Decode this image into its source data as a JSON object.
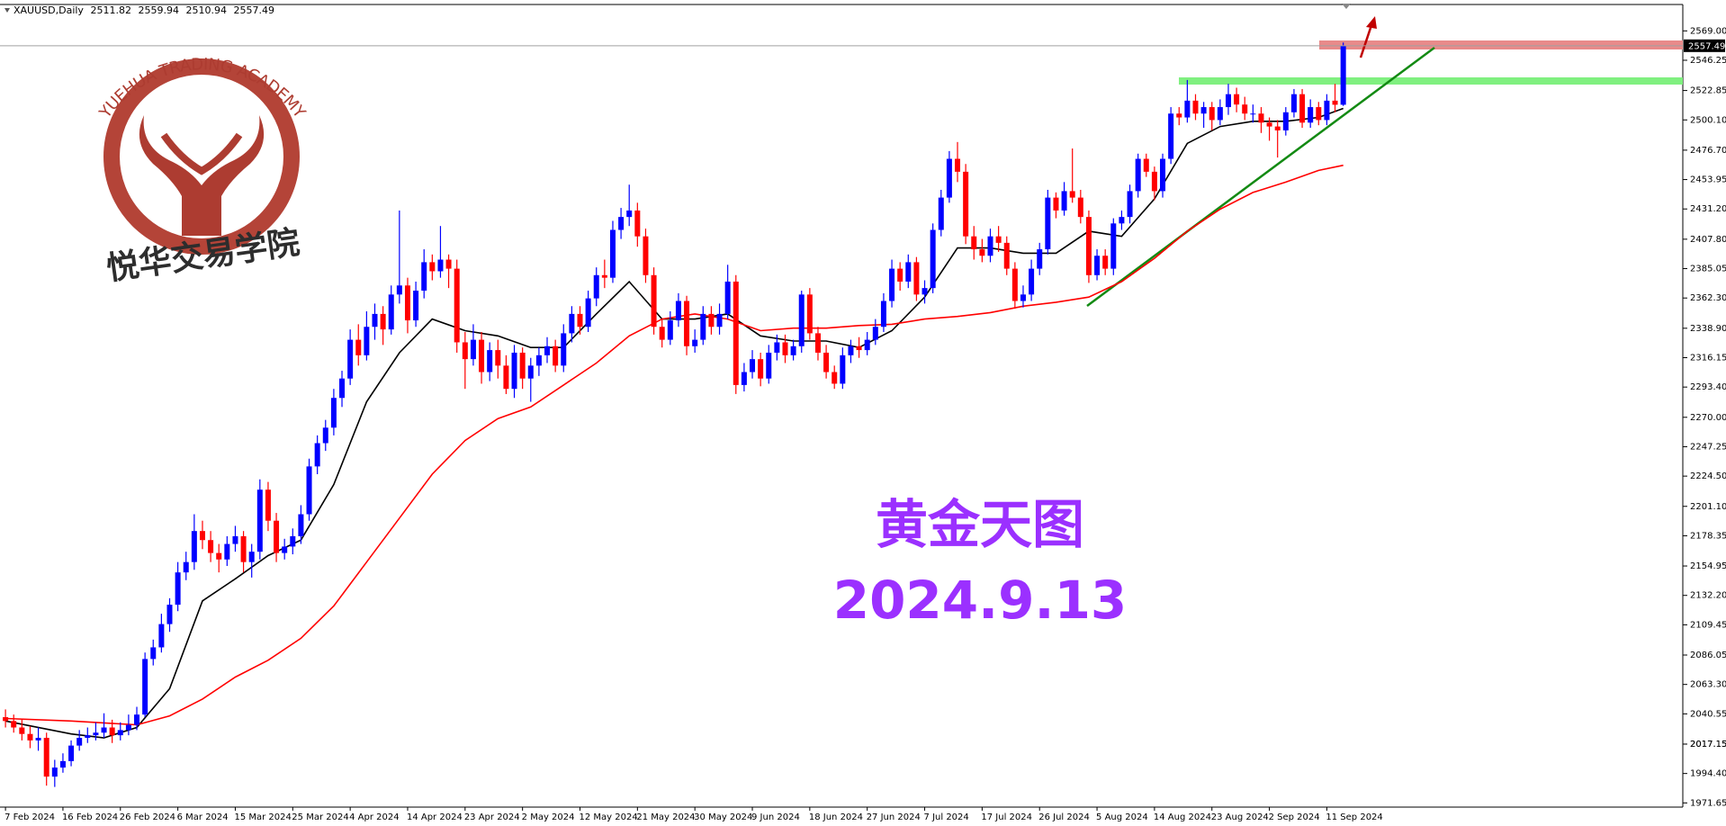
{
  "chart_data": {
    "type": "candlestick",
    "symbol": "XAUUSD,Daily",
    "up_color": "#0000ff",
    "down_color": "#ff0000",
    "ylim": [
      1968.4,
      2589.4
    ],
    "yticks": [
      {
        "value": 2569,
        "label": "2569.00"
      },
      2546.25,
      2522.85,
      {
        "value": 2500.1,
        "label": "2500.10"
      },
      {
        "value": 2476.7,
        "label": "2476.70"
      },
      2453.95,
      {
        "value": 2431.2,
        "label": "2431.20"
      },
      {
        "value": 2407.8,
        "label": "2407.80"
      },
      2385.05,
      {
        "value": 2362.3,
        "label": "2362.30"
      },
      {
        "value": 2338.9,
        "label": "2338.90"
      },
      2316.15,
      {
        "value": 2293.4,
        "label": "2293.40"
      },
      {
        "value": 2270,
        "label": "2270.00"
      },
      2247.25,
      {
        "value": 2224.5,
        "label": "2224.50"
      },
      {
        "value": 2201.1,
        "label": "2201.10"
      },
      2178.35,
      2154.95,
      {
        "value": 2132.2,
        "label": "2132.20"
      },
      2109.45,
      2086.05,
      {
        "value": 2063.3,
        "label": "2063.30"
      },
      2040.55,
      2017.15,
      {
        "value": 1994.4,
        "label": "1994.40"
      },
      2017.15,
      1971.65
    ],
    "categories": [
      "7 Feb 2024",
      null,
      null,
      null,
      null,
      null,
      null,
      "16 Feb 2024",
      null,
      null,
      null,
      null,
      null,
      null,
      "26 Feb 2024",
      null,
      null,
      null,
      null,
      null,
      null,
      "6 Mar 2024",
      null,
      null,
      null,
      null,
      null,
      null,
      "15 Mar 2024",
      null,
      null,
      null,
      null,
      null,
      null,
      "25 Mar 2024",
      null,
      null,
      null,
      null,
      null,
      null,
      "4 Apr 2024",
      null,
      null,
      null,
      null,
      null,
      null,
      "14 Apr 2024",
      null,
      null,
      null,
      null,
      null,
      null,
      "23 Apr 2024",
      null,
      null,
      null,
      null,
      null,
      null,
      "2 May 2024",
      null,
      null,
      null,
      null,
      null,
      null,
      "12 May 2024",
      null,
      null,
      null,
      null,
      null,
      null,
      "21 May 2024",
      null,
      null,
      null,
      null,
      null,
      null,
      "30 May 2024",
      null,
      null,
      null,
      null,
      null,
      null,
      "9 Jun 2024",
      null,
      null,
      null,
      null,
      null,
      null,
      "18 Jun 2024",
      null,
      null,
      null,
      null,
      null,
      null,
      "27 Jun 2024",
      null,
      null,
      null,
      null,
      null,
      null,
      "7 Jul 2024",
      null,
      null,
      null,
      null,
      null,
      null,
      "17 Jul 2024",
      null,
      null,
      null,
      null,
      null,
      null,
      "26 Jul 2024",
      null,
      null,
      null,
      null,
      null,
      null,
      "5 Aug 2024",
      null,
      null,
      null,
      null,
      null,
      null,
      "14 Aug 2024",
      null,
      null,
      null,
      null,
      null,
      null,
      "23 Aug 2024",
      null,
      null,
      null,
      null,
      null,
      null,
      "2 Sep 2024",
      null,
      null,
      null,
      null,
      null,
      null,
      "11 Sep 2024",
      null,
      null
    ],
    "ohlc": [
      [
        2038,
        2044,
        2030,
        2035
      ],
      [
        2035,
        2040,
        2026,
        2030
      ],
      [
        2030,
        2036,
        2020,
        2025
      ],
      [
        2025,
        2031,
        2014,
        2020
      ],
      [
        2020,
        2030,
        2012,
        2022
      ],
      [
        2022,
        2026,
        1985,
        1992
      ],
      [
        1992,
        2005,
        1984,
        1999
      ],
      [
        1999,
        2010,
        1995,
        2004
      ],
      [
        2004,
        2020,
        2000,
        2016
      ],
      [
        2016,
        2028,
        2012,
        2022
      ],
      [
        2022,
        2030,
        2018,
        2024
      ],
      [
        2024,
        2034,
        2020,
        2026
      ],
      [
        2026,
        2041,
        2022,
        2030
      ],
      [
        2030,
        2036,
        2018,
        2024
      ],
      [
        2024,
        2034,
        2020,
        2028
      ],
      [
        2028,
        2040,
        2024,
        2032
      ],
      [
        2032,
        2046,
        2028,
        2040
      ],
      [
        2040,
        2088,
        2038,
        2083
      ],
      [
        2083,
        2098,
        2078,
        2092
      ],
      [
        2092,
        2118,
        2088,
        2110
      ],
      [
        2110,
        2130,
        2104,
        2125
      ],
      [
        2125,
        2158,
        2120,
        2150
      ],
      [
        2150,
        2166,
        2144,
        2158
      ],
      [
        2158,
        2195,
        2152,
        2182
      ],
      [
        2182,
        2190,
        2168,
        2175
      ],
      [
        2175,
        2182,
        2158,
        2165
      ],
      [
        2165,
        2172,
        2150,
        2160
      ],
      [
        2160,
        2178,
        2155,
        2172
      ],
      [
        2172,
        2186,
        2166,
        2178
      ],
      [
        2178,
        2182,
        2150,
        2158
      ],
      [
        2158,
        2172,
        2146,
        2166
      ],
      [
        2166,
        2222,
        2160,
        2214
      ],
      [
        2214,
        2220,
        2182,
        2190
      ],
      [
        2190,
        2196,
        2158,
        2165
      ],
      [
        2165,
        2176,
        2160,
        2170
      ],
      [
        2170,
        2184,
        2164,
        2178
      ],
      [
        2178,
        2202,
        2172,
        2195
      ],
      [
        2195,
        2238,
        2190,
        2232
      ],
      [
        2232,
        2256,
        2226,
        2250
      ],
      [
        2250,
        2268,
        2244,
        2262
      ],
      [
        2262,
        2292,
        2256,
        2285
      ],
      [
        2285,
        2306,
        2278,
        2300
      ],
      [
        2300,
        2338,
        2295,
        2330
      ],
      [
        2330,
        2342,
        2310,
        2318
      ],
      [
        2318,
        2352,
        2314,
        2340
      ],
      [
        2340,
        2358,
        2330,
        2350
      ],
      [
        2350,
        2356,
        2326,
        2338
      ],
      [
        2338,
        2372,
        2334,
        2365
      ],
      [
        2365,
        2430,
        2358,
        2372
      ],
      [
        2372,
        2378,
        2335,
        2345
      ],
      [
        2345,
        2375,
        2340,
        2368
      ],
      [
        2368,
        2400,
        2362,
        2390
      ],
      [
        2390,
        2396,
        2376,
        2383
      ],
      [
        2383,
        2418,
        2378,
        2392
      ],
      [
        2392,
        2396,
        2370,
        2385
      ],
      [
        2385,
        2392,
        2320,
        2328
      ],
      [
        2328,
        2336,
        2292,
        2315
      ],
      [
        2315,
        2342,
        2310,
        2330
      ],
      [
        2330,
        2336,
        2296,
        2305
      ],
      [
        2305,
        2328,
        2298,
        2322
      ],
      [
        2322,
        2330,
        2300,
        2310
      ],
      [
        2310,
        2318,
        2288,
        2292
      ],
      [
        2292,
        2326,
        2285,
        2320
      ],
      [
        2320,
        2324,
        2292,
        2300
      ],
      [
        2300,
        2316,
        2282,
        2310
      ],
      [
        2310,
        2324,
        2302,
        2318
      ],
      [
        2318,
        2332,
        2312,
        2325
      ],
      [
        2325,
        2330,
        2305,
        2310
      ],
      [
        2310,
        2342,
        2305,
        2335
      ],
      [
        2335,
        2356,
        2328,
        2350
      ],
      [
        2350,
        2356,
        2334,
        2340
      ],
      [
        2340,
        2368,
        2336,
        2362
      ],
      [
        2362,
        2386,
        2356,
        2380
      ],
      [
        2380,
        2392,
        2370,
        2378
      ],
      [
        2378,
        2422,
        2374,
        2415
      ],
      [
        2415,
        2432,
        2408,
        2425
      ],
      [
        2425,
        2450,
        2418,
        2430
      ],
      [
        2430,
        2436,
        2402,
        2410
      ],
      [
        2410,
        2416,
        2374,
        2380
      ],
      [
        2380,
        2386,
        2334,
        2340
      ],
      [
        2340,
        2346,
        2324,
        2330
      ],
      [
        2330,
        2352,
        2326,
        2345
      ],
      [
        2345,
        2366,
        2340,
        2360
      ],
      [
        2360,
        2364,
        2318,
        2325
      ],
      [
        2325,
        2338,
        2320,
        2330
      ],
      [
        2330,
        2356,
        2326,
        2350
      ],
      [
        2350,
        2356,
        2334,
        2340
      ],
      [
        2340,
        2358,
        2334,
        2350
      ],
      [
        2350,
        2388,
        2346,
        2375
      ],
      [
        2375,
        2380,
        2288,
        2295
      ],
      [
        2295,
        2312,
        2290,
        2305
      ],
      [
        2305,
        2322,
        2300,
        2315
      ],
      [
        2315,
        2320,
        2294,
        2300
      ],
      [
        2300,
        2326,
        2296,
        2320
      ],
      [
        2320,
        2334,
        2314,
        2328
      ],
      [
        2328,
        2334,
        2312,
        2318
      ],
      [
        2318,
        2330,
        2314,
        2325
      ],
      [
        2325,
        2368,
        2320,
        2365
      ],
      [
        2365,
        2370,
        2330,
        2335
      ],
      [
        2335,
        2340,
        2314,
        2320
      ],
      [
        2320,
        2326,
        2300,
        2305
      ],
      [
        2305,
        2310,
        2292,
        2296
      ],
      [
        2296,
        2324,
        2292,
        2318
      ],
      [
        2318,
        2330,
        2312,
        2325
      ],
      [
        2325,
        2332,
        2316,
        2322
      ],
      [
        2322,
        2336,
        2318,
        2330
      ],
      [
        2330,
        2346,
        2326,
        2340
      ],
      [
        2340,
        2366,
        2336,
        2360
      ],
      [
        2360,
        2392,
        2355,
        2385
      ],
      [
        2385,
        2390,
        2368,
        2375
      ],
      [
        2375,
        2396,
        2370,
        2390
      ],
      [
        2390,
        2394,
        2360,
        2365
      ],
      [
        2365,
        2376,
        2358,
        2370
      ],
      [
        2370,
        2420,
        2366,
        2415
      ],
      [
        2415,
        2446,
        2410,
        2440
      ],
      [
        2440,
        2476,
        2436,
        2470
      ],
      [
        2470,
        2483,
        2452,
        2460
      ],
      [
        2460,
        2466,
        2404,
        2410
      ],
      [
        2410,
        2418,
        2392,
        2400
      ],
      [
        2400,
        2408,
        2390,
        2395
      ],
      [
        2395,
        2416,
        2390,
        2410
      ],
      [
        2410,
        2418,
        2398,
        2405
      ],
      [
        2405,
        2410,
        2380,
        2385
      ],
      [
        2385,
        2390,
        2354,
        2360
      ],
      [
        2360,
        2372,
        2355,
        2365
      ],
      [
        2365,
        2392,
        2360,
        2385
      ],
      [
        2385,
        2405,
        2380,
        2400
      ],
      [
        2400,
        2446,
        2396,
        2440
      ],
      [
        2440,
        2444,
        2424,
        2430
      ],
      [
        2430,
        2452,
        2426,
        2445
      ],
      [
        2445,
        2478,
        2436,
        2440
      ],
      [
        2440,
        2446,
        2420,
        2425
      ],
      [
        2425,
        2430,
        2374,
        2380
      ],
      [
        2380,
        2400,
        2376,
        2395
      ],
      [
        2395,
        2400,
        2380,
        2385
      ],
      [
        2385,
        2424,
        2380,
        2420
      ],
      [
        2420,
        2430,
        2415,
        2425
      ],
      [
        2425,
        2450,
        2420,
        2445
      ],
      [
        2445,
        2474,
        2440,
        2470
      ],
      [
        2470,
        2474,
        2456,
        2460
      ],
      [
        2460,
        2464,
        2438,
        2445
      ],
      [
        2445,
        2474,
        2440,
        2470
      ],
      [
        2470,
        2510,
        2466,
        2505
      ],
      [
        2505,
        2510,
        2496,
        2502
      ],
      [
        2502,
        2531,
        2498,
        2515
      ],
      [
        2515,
        2520,
        2500,
        2505
      ],
      [
        2505,
        2514,
        2494,
        2510
      ],
      [
        2510,
        2514,
        2492,
        2500
      ],
      [
        2500,
        2516,
        2496,
        2510
      ],
      [
        2510,
        2528,
        2504,
        2520
      ],
      [
        2520,
        2525,
        2506,
        2512
      ],
      [
        2512,
        2518,
        2500,
        2505
      ],
      [
        2505,
        2512,
        2498,
        2505
      ],
      [
        2505,
        2510,
        2490,
        2498
      ],
      [
        2498,
        2502,
        2484,
        2495
      ],
      [
        2495,
        2500,
        2471,
        2492
      ],
      [
        2492,
        2510,
        2488,
        2506
      ],
      [
        2506,
        2524,
        2502,
        2520
      ],
      [
        2520,
        2524,
        2494,
        2498
      ],
      [
        2498,
        2516,
        2494,
        2510
      ],
      [
        2510,
        2514,
        2496,
        2500
      ],
      [
        2500,
        2520,
        2496,
        2515
      ],
      [
        2515,
        2528,
        2506,
        2511.82
      ],
      [
        2511.82,
        2559.94,
        2510.94,
        2557.49
      ]
    ],
    "series": [
      {
        "color": "#000000",
        "x": [
          0,
          8,
          12,
          16,
          20,
          24,
          28,
          32,
          36,
          40,
          44,
          48,
          52,
          56,
          60,
          64,
          68,
          72,
          76,
          80,
          84,
          88,
          92,
          96,
          100,
          104,
          108,
          112,
          116,
          120,
          124,
          128,
          132,
          136,
          140,
          144,
          148,
          152,
          156,
          160,
          163
        ],
        "values": [
          2035,
          2025,
          2022,
          2030,
          2060,
          2128,
          2145,
          2163,
          2175,
          2218,
          2282,
          2320,
          2346,
          2337,
          2333,
          2324,
          2324,
          2350,
          2375,
          2346,
          2346,
          2350,
          2333,
          2329,
          2329,
          2324,
          2337,
          2363,
          2401,
          2401,
          2397,
          2397,
          2414,
          2410,
          2439,
          2482,
          2495,
          2499,
          2499,
          2502,
          2509
        ]
      },
      {
        "color": "#ff0000",
        "x": [
          0,
          8,
          16,
          20,
          24,
          28,
          32,
          36,
          40,
          44,
          48,
          52,
          56,
          60,
          64,
          68,
          72,
          76,
          80,
          84,
          88,
          92,
          96,
          100,
          104,
          108,
          112,
          116,
          120,
          124,
          128,
          132,
          136,
          140,
          144,
          148,
          152,
          156,
          160,
          163
        ],
        "values": [
          2037,
          2035,
          2032,
          2039,
          2052,
          2069,
          2082,
          2099,
          2124,
          2158,
          2192,
          2226,
          2252,
          2269,
          2278,
          2295,
          2312,
          2333,
          2346,
          2350,
          2346,
          2337,
          2339,
          2339,
          2341,
          2342,
          2346,
          2348,
          2351,
          2356,
          2359,
          2363,
          2375,
          2393,
          2414,
          2431,
          2444,
          2452,
          2461,
          2465
        ]
      }
    ],
    "annotations": {
      "title": "黄金天图",
      "date": "2024.9.13"
    }
  },
  "watermark": {
    "name": "YUEHUA TRADING ACADEMY",
    "cn_name": "悦华交易学院"
  }
}
